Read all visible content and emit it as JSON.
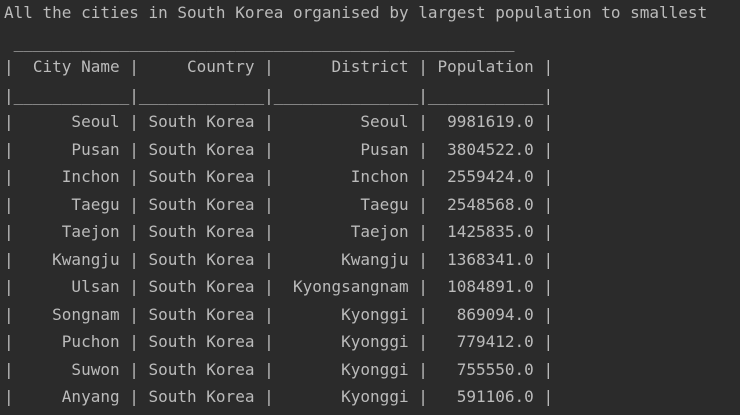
{
  "console": {
    "heading": "All the cities in South Korea organised by largest population to smallest",
    "table": {
      "border_top": " ____________________________________________________",
      "columns": [
        "City Name",
        "Country",
        "District",
        "Population"
      ],
      "header_line": "|  City Name |     Country |      District | Population |",
      "header_separator": "|____________|_____________|_______________|____________|",
      "rows": [
        {
          "city": "Seoul",
          "country": "South Korea",
          "district": "Seoul",
          "population": "9981619.0"
        },
        {
          "city": "Pusan",
          "country": "South Korea",
          "district": "Pusan",
          "population": "3804522.0"
        },
        {
          "city": "Inchon",
          "country": "South Korea",
          "district": "Inchon",
          "population": "2559424.0"
        },
        {
          "city": "Taegu",
          "country": "South Korea",
          "district": "Taegu",
          "population": "2548568.0"
        },
        {
          "city": "Taejon",
          "country": "South Korea",
          "district": "Taejon",
          "population": "1425835.0"
        },
        {
          "city": "Kwangju",
          "country": "South Korea",
          "district": "Kwangju",
          "population": "1368341.0"
        },
        {
          "city": "Ulsan",
          "country": "South Korea",
          "district": "Kyongsangnam",
          "population": "1084891.0"
        },
        {
          "city": "Songnam",
          "country": "South Korea",
          "district": "Kyonggi",
          "population": "869094.0"
        },
        {
          "city": "Puchon",
          "country": "South Korea",
          "district": "Kyonggi",
          "population": "779412.0"
        },
        {
          "city": "Suwon",
          "country": "South Korea",
          "district": "Kyonggi",
          "population": "755550.0"
        },
        {
          "city": "Anyang",
          "country": "South Korea",
          "district": "Kyonggi",
          "population": "591106.0"
        }
      ]
    }
  }
}
